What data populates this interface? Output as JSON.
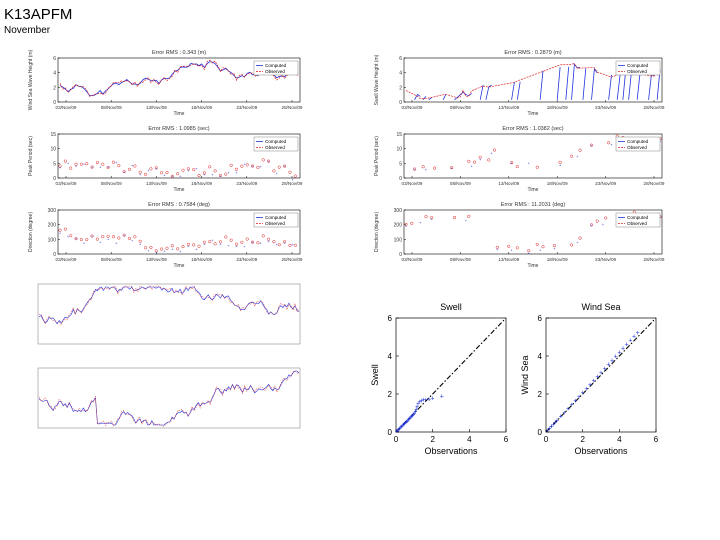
{
  "slide": {
    "title": "K13APFM",
    "subtitle": "November"
  },
  "colors": {
    "computed": "#2233dd",
    "observed": "#dd2222",
    "axis": "#000000",
    "grid": "#cccccc",
    "fit": "#000000"
  },
  "timeseries_left": {
    "x_tick_labels": [
      "03/Nov/09",
      "08/Nov/09",
      "13/Nov/09",
      "18/Nov/09",
      "23/Nov/09",
      "28/Nov/09"
    ],
    "x_label": "Time",
    "panels": [
      {
        "title": "Error RMS : 0.343 (m)",
        "ylabel": "Wind Sea Wave Height (m)",
        "yticks": [
          "0",
          "2",
          "4",
          "6"
        ],
        "legend": [
          "Computed",
          "Observed"
        ]
      },
      {
        "title": "Error RMS : 1.0985 (sec)",
        "ylabel": "Peak Period (sec)",
        "yticks": [
          "0",
          "5",
          "10",
          "15"
        ],
        "legend": [
          "Computed",
          "Observed"
        ]
      },
      {
        "title": "Error RMS : 0.7584 (deg)",
        "ylabel": "Direction (degree)",
        "yticks": [
          "0",
          "100",
          "200",
          "300"
        ],
        "legend": [
          "Computed",
          "Observed"
        ]
      }
    ]
  },
  "timeseries_right": {
    "x_tick_labels": [
      "03/Nov/09",
      "08/Nov/09",
      "13/Nov/09",
      "18/Nov/09",
      "23/Nov/09",
      "28/Nov/09"
    ],
    "x_label": "Time",
    "panels": [
      {
        "title": "Error RMS : 0.2879 (m)",
        "ylabel": "Swell Wave Height (m)",
        "yticks": [
          "0",
          "2",
          "4",
          "6"
        ],
        "legend": [
          "Computed",
          "Observed"
        ]
      },
      {
        "title": "Error RMS : 1.0382 (sec)",
        "ylabel": "Peak Period (sec)",
        "yticks": [
          "0",
          "5",
          "10",
          "15"
        ],
        "legend": [
          "Computed",
          "Observed"
        ]
      },
      {
        "title": "Error RMS : 11.2031 (deg)",
        "ylabel": "Direction (degree)",
        "yticks": [
          "0",
          "100",
          "200",
          "300"
        ],
        "legend": [
          "Computed",
          "Observed"
        ]
      }
    ]
  },
  "chart_data": [
    {
      "type": "scatter",
      "title": "Swell",
      "xlabel": "Observations",
      "ylabel": "Swell",
      "xlim": [
        0,
        6
      ],
      "ylim": [
        0,
        6
      ],
      "xticks": [
        "0",
        "2",
        "4",
        "6"
      ],
      "yticks": [
        "0",
        "2",
        "4",
        "6"
      ],
      "points": [
        [
          0.05,
          0.05
        ],
        [
          0.1,
          0.1
        ],
        [
          0.15,
          0.14
        ],
        [
          0.2,
          0.2
        ],
        [
          0.25,
          0.27
        ],
        [
          0.3,
          0.3
        ],
        [
          0.35,
          0.34
        ],
        [
          0.4,
          0.4
        ],
        [
          0.45,
          0.45
        ],
        [
          0.5,
          0.5
        ],
        [
          0.55,
          0.52
        ],
        [
          0.6,
          0.58
        ],
        [
          0.65,
          0.62
        ],
        [
          0.7,
          0.68
        ],
        [
          0.75,
          0.74
        ],
        [
          0.8,
          0.8
        ],
        [
          0.85,
          0.85
        ],
        [
          0.9,
          0.88
        ],
        [
          0.95,
          0.95
        ],
        [
          1.0,
          1.0
        ],
        [
          1.05,
          1.1
        ],
        [
          1.1,
          1.2
        ],
        [
          1.15,
          1.35
        ],
        [
          1.2,
          1.5
        ],
        [
          1.3,
          1.6
        ],
        [
          1.4,
          1.65
        ],
        [
          1.5,
          1.7
        ],
        [
          1.6,
          1.72
        ],
        [
          1.8,
          1.75
        ],
        [
          2.0,
          1.8
        ],
        [
          2.5,
          1.9
        ]
      ]
    },
    {
      "type": "scatter",
      "title": "Wind Sea",
      "xlabel": "Observations",
      "ylabel": "Wind Sea",
      "xlim": [
        0,
        6
      ],
      "ylim": [
        0,
        6
      ],
      "xticks": [
        "0",
        "2",
        "4",
        "6"
      ],
      "yticks": [
        "0",
        "2",
        "4",
        "6"
      ],
      "points": [
        [
          0.1,
          0.1
        ],
        [
          0.2,
          0.2
        ],
        [
          0.3,
          0.32
        ],
        [
          0.4,
          0.42
        ],
        [
          0.5,
          0.52
        ],
        [
          0.6,
          0.63
        ],
        [
          0.8,
          0.83
        ],
        [
          1.0,
          1.02
        ],
        [
          1.2,
          1.24
        ],
        [
          1.4,
          1.45
        ],
        [
          1.6,
          1.66
        ],
        [
          1.8,
          1.87
        ],
        [
          2.0,
          2.08
        ],
        [
          2.2,
          2.3
        ],
        [
          2.4,
          2.5
        ],
        [
          2.6,
          2.72
        ],
        [
          2.8,
          2.93
        ],
        [
          3.0,
          3.14
        ],
        [
          3.2,
          3.35
        ],
        [
          3.4,
          3.57
        ],
        [
          3.6,
          3.78
        ],
        [
          3.8,
          3.99
        ],
        [
          4.0,
          4.2
        ],
        [
          4.2,
          4.41
        ],
        [
          4.4,
          4.62
        ],
        [
          4.6,
          4.83
        ],
        [
          4.8,
          5.04
        ],
        [
          5.0,
          5.25
        ]
      ]
    }
  ]
}
